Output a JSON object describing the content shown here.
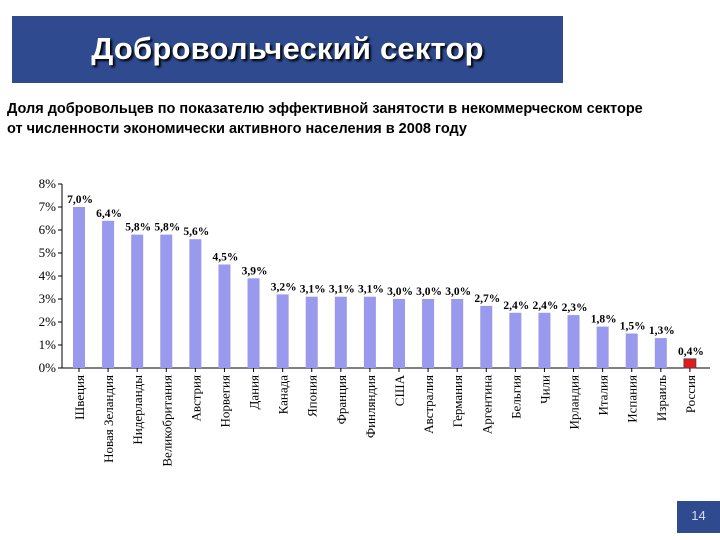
{
  "slide": {
    "title": "Добровольческий сектор",
    "subtitle_line1": "Доля добровольцев по показателю эффективной занятости в некоммерческом секторе",
    "subtitle_line2": "от численности экономически активного населения в 2008 году",
    "page_number": "14"
  },
  "colors": {
    "title_bg": "#2f4a8f",
    "bar": "#9999ee",
    "bar_highlight": "#e01c1c"
  },
  "chart_data": {
    "type": "bar",
    "title": "",
    "xlabel": "",
    "ylabel": "",
    "ylim": [
      0,
      8
    ],
    "yticks": [
      "0%",
      "1%",
      "2%",
      "3%",
      "4%",
      "5%",
      "6%",
      "7%",
      "8%"
    ],
    "categories": [
      "Швеция",
      "Новая Зеландия",
      "Нидерланды",
      "Великобритания",
      "Австрия",
      "Норвегия",
      "Дания",
      "Канада",
      "Япония",
      "Франция",
      "Финляндия",
      "США",
      "Австралия",
      "Германия",
      "Аргентина",
      "Бельгия",
      "Чили",
      "Ирландия",
      "Италия",
      "Испания",
      "Израиль",
      "Россия"
    ],
    "values": [
      7.0,
      6.4,
      5.8,
      5.8,
      5.6,
      4.5,
      3.9,
      3.2,
      3.1,
      3.1,
      3.1,
      3.0,
      3.0,
      3.0,
      2.7,
      2.4,
      2.4,
      2.3,
      1.8,
      1.5,
      1.3,
      0.4
    ],
    "value_labels": [
      "7,0%",
      "6,4%",
      "5,8%",
      "5,8%",
      "5,6%",
      "4,5%",
      "3,9%",
      "3,2%",
      "3,1%",
      "3,1%",
      "3,1%",
      "3,0%",
      "3,0%",
      "3,0%",
      "2,7%",
      "2,4%",
      "2,4%",
      "2,3%",
      "1,8%",
      "1,5%",
      "1,3%",
      "0,4%"
    ],
    "highlight": "Россия",
    "grid": false
  }
}
